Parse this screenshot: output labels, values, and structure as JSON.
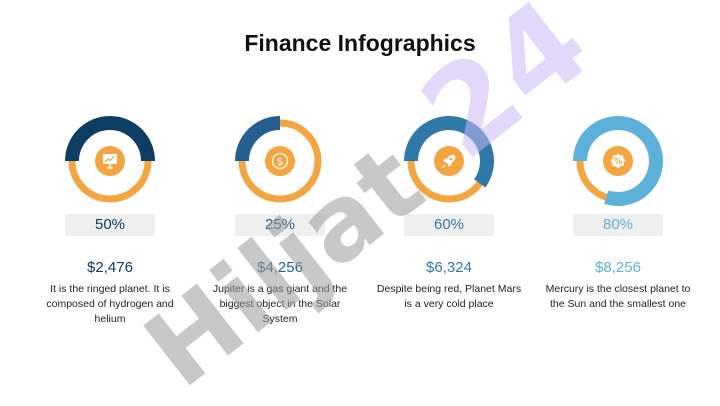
{
  "title": "Finance Infographics",
  "colors": {
    "orange": "#f2a541",
    "blue_dark": "#0e3d63",
    "blue_mid": "#255f8f",
    "blue_steel": "#2f79a8",
    "blue_light": "#5cb0d9"
  },
  "items": [
    {
      "percent": "50%",
      "percent_value": 0.5,
      "amount": "$2,476",
      "description": "It is the ringed planet. It is composed of hydrogen and helium",
      "icon": "presentation-board-icon",
      "color": "#0e3d63"
    },
    {
      "percent": "25%",
      "percent_value": 0.25,
      "amount": "$4,256",
      "description": "Jupiter is a gas giant and the biggest object in the Solar System",
      "icon": "dollar-coin-icon",
      "color": "#255f8f"
    },
    {
      "percent": "60%",
      "percent_value": 0.6,
      "amount": "$6,324",
      "description": "Despite being red, Planet Mars is a very cold place",
      "icon": "rocket-icon",
      "color": "#2f79a8"
    },
    {
      "percent": "80%",
      "percent_value": 0.8,
      "amount": "$8,256",
      "description": "Mercury is the closest planet to the Sun and the smallest one",
      "icon": "percent-badge-icon",
      "color": "#5cb0d9"
    }
  ],
  "watermark": {
    "dark": "Hiljat",
    "light": "24"
  }
}
